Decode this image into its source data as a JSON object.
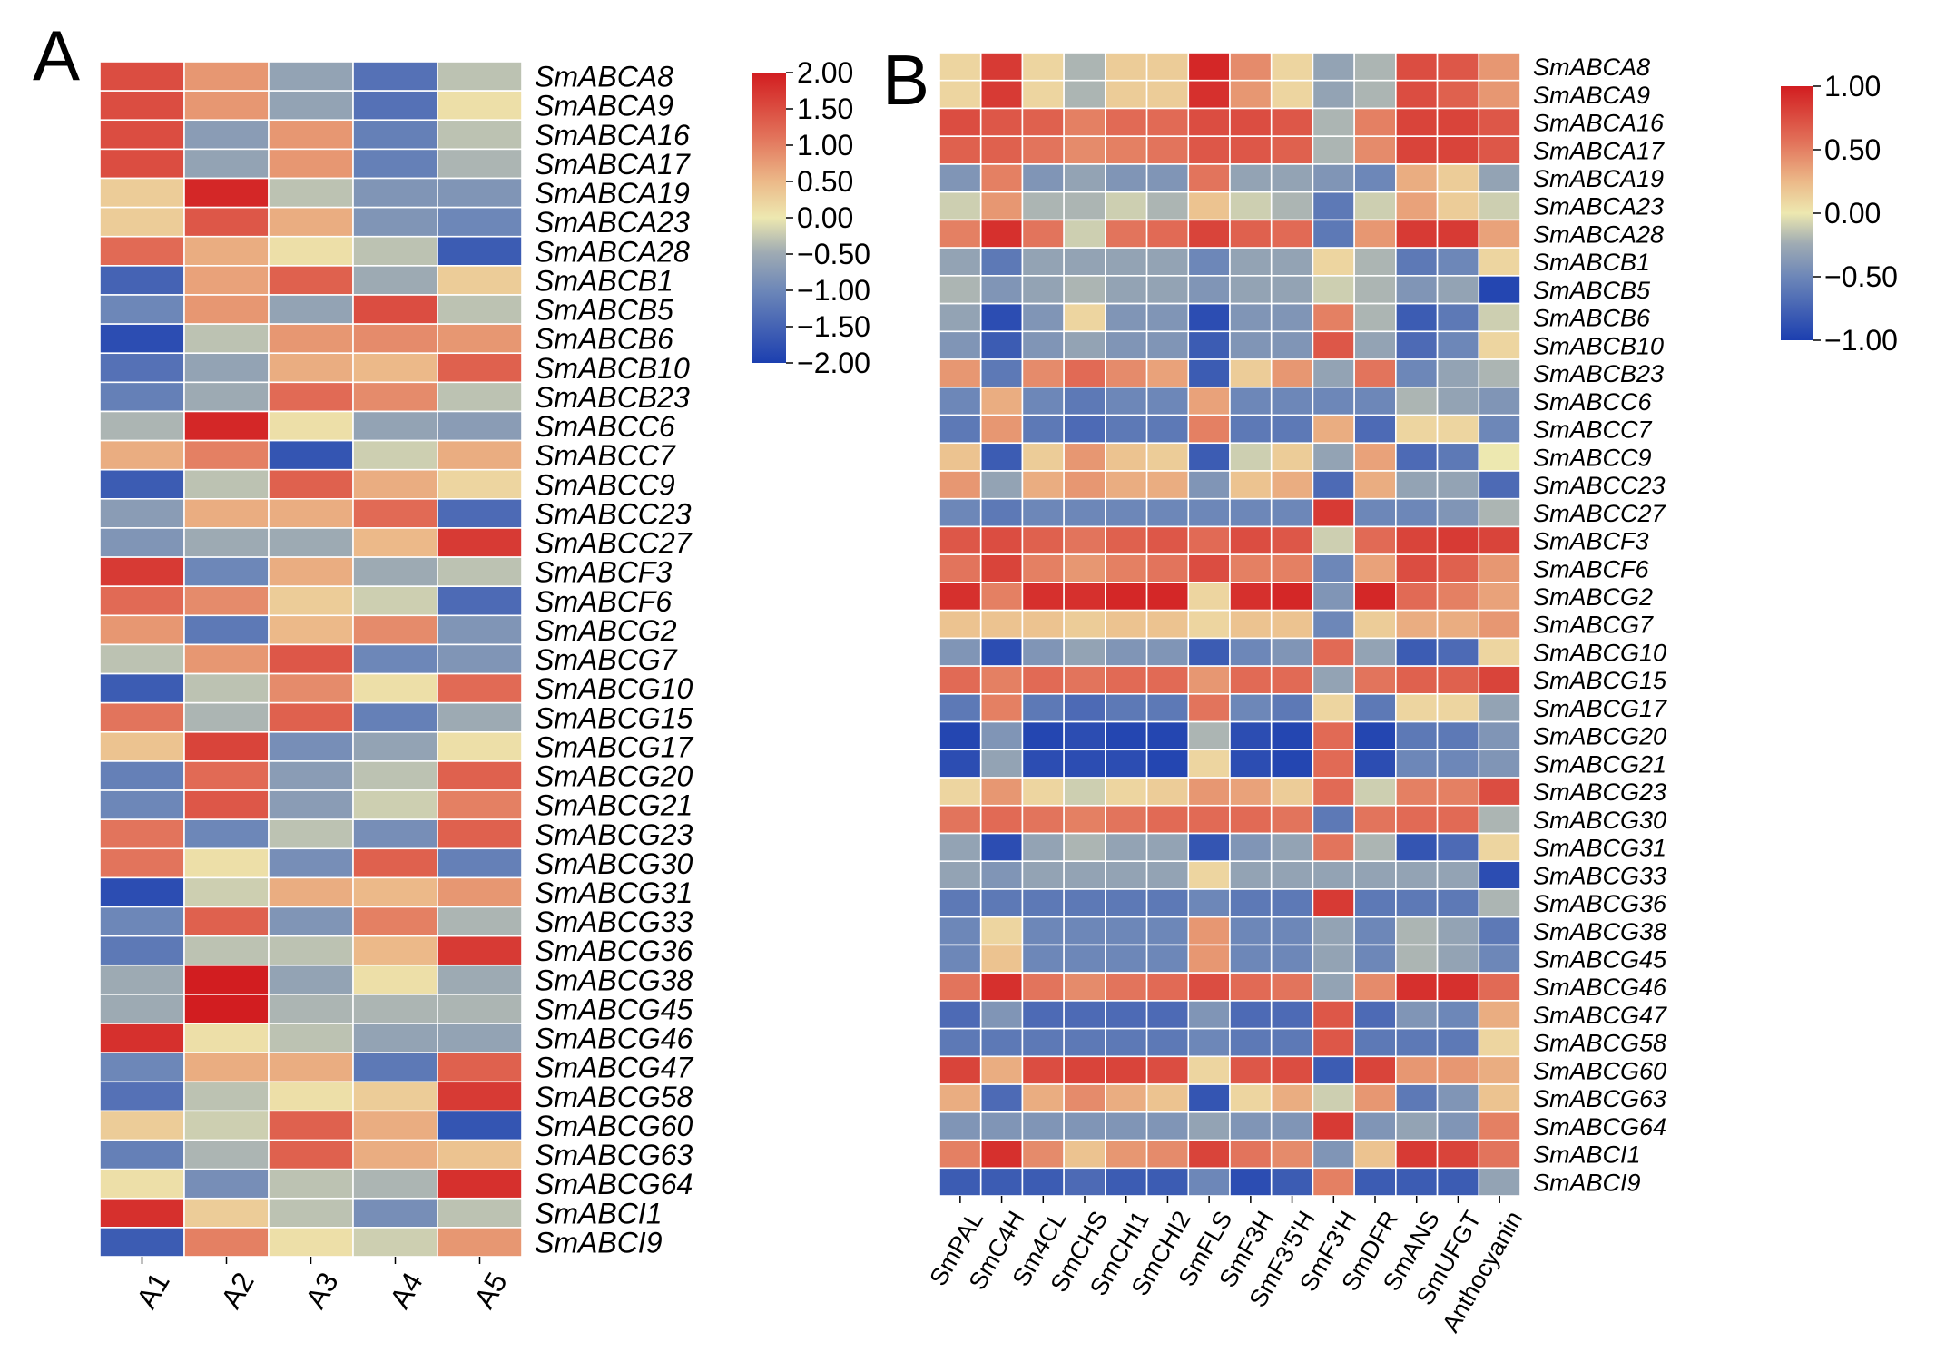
{
  "chart_data": [
    {
      "panel": "A",
      "type": "heatmap",
      "columns": [
        "A1",
        "A2",
        "A3",
        "A4",
        "A5"
      ],
      "rows": [
        "SmABCA8",
        "SmABCA9",
        "SmABCA16",
        "SmABCA17",
        "SmABCA19",
        "SmABCA23",
        "SmABCA28",
        "SmABCB1",
        "SmABCB5",
        "SmABCB6",
        "SmABCB10",
        "SmABCB23",
        "SmABCC6",
        "SmABCC7",
        "SmABCC9",
        "SmABCC23",
        "SmABCC27",
        "SmABCF3",
        "SmABCF6",
        "SmABCG2",
        "SmABCG7",
        "SmABCG10",
        "SmABCG15",
        "SmABCG17",
        "SmABCG20",
        "SmABCG21",
        "SmABCG23",
        "SmABCG30",
        "SmABCG31",
        "SmABCG33",
        "SmABCG36",
        "SmABCG38",
        "SmABCG45",
        "SmABCG46",
        "SmABCG47",
        "SmABCG58",
        "SmABCG60",
        "SmABCG63",
        "SmABCG64",
        "SmABCI1",
        "SmABCI9"
      ],
      "values": [
        [
          1.5,
          0.8,
          -0.6,
          -1.3,
          -0.3
        ],
        [
          1.5,
          0.8,
          -0.6,
          -1.3,
          0.1
        ],
        [
          1.5,
          -0.7,
          0.8,
          -1.1,
          -0.3
        ],
        [
          1.5,
          -0.6,
          0.8,
          -1.1,
          -0.4
        ],
        [
          0.3,
          1.9,
          -0.3,
          -0.8,
          -0.8
        ],
        [
          0.3,
          1.4,
          0.6,
          -0.8,
          -1.0
        ],
        [
          1.2,
          0.6,
          0.1,
          -0.3,
          -1.6
        ],
        [
          -1.5,
          0.7,
          1.3,
          -0.5,
          0.3
        ],
        [
          -1.0,
          0.8,
          -0.6,
          1.5,
          -0.3
        ],
        [
          -1.8,
          -0.3,
          0.8,
          0.9,
          0.8
        ],
        [
          -1.3,
          -0.6,
          0.6,
          0.5,
          1.3
        ],
        [
          -1.1,
          -0.5,
          1.2,
          0.9,
          -0.3
        ],
        [
          -0.4,
          1.9,
          0.1,
          -0.6,
          -0.7
        ],
        [
          0.6,
          1.0,
          -1.7,
          -0.2,
          0.6
        ],
        [
          -1.6,
          -0.3,
          1.3,
          0.6,
          0.2
        ],
        [
          -0.7,
          0.6,
          0.6,
          1.2,
          -1.4
        ],
        [
          -0.8,
          -0.5,
          -0.5,
          0.5,
          1.7
        ],
        [
          1.7,
          -1.0,
          0.6,
          -0.5,
          -0.3
        ],
        [
          1.2,
          0.9,
          0.3,
          -0.2,
          -1.4
        ],
        [
          0.8,
          -1.2,
          0.5,
          0.9,
          -0.8
        ],
        [
          -0.3,
          0.8,
          1.4,
          -1.0,
          -0.8
        ],
        [
          -1.6,
          -0.3,
          0.9,
          0.1,
          1.2
        ],
        [
          1.1,
          -0.4,
          1.3,
          -1.1,
          -0.5
        ],
        [
          0.4,
          1.6,
          -0.9,
          -0.6,
          0.1
        ],
        [
          -1.1,
          1.2,
          -0.7,
          -0.3,
          1.3
        ],
        [
          -1.0,
          1.4,
          -0.7,
          -0.2,
          1.0
        ],
        [
          1.1,
          -1.0,
          -0.3,
          -0.9,
          1.3
        ],
        [
          1.1,
          0.1,
          -0.9,
          1.3,
          -1.1
        ],
        [
          -1.8,
          -0.2,
          0.6,
          0.5,
          0.8
        ],
        [
          -1.0,
          1.3,
          -0.8,
          1.0,
          -0.4
        ],
        [
          -1.2,
          -0.3,
          -0.3,
          0.5,
          1.7
        ],
        [
          -0.5,
          2.0,
          -0.6,
          0.1,
          -0.5
        ],
        [
          -0.5,
          2.0,
          -0.4,
          -0.4,
          -0.4
        ],
        [
          1.8,
          0.1,
          -0.3,
          -0.6,
          -0.6
        ],
        [
          -1.0,
          0.6,
          0.6,
          -1.2,
          1.3
        ],
        [
          -1.3,
          -0.3,
          0.1,
          0.3,
          1.7
        ],
        [
          0.3,
          -0.2,
          1.3,
          0.6,
          -1.7
        ],
        [
          -1.1,
          -0.4,
          1.3,
          0.6,
          0.4
        ],
        [
          0.1,
          -0.9,
          -0.3,
          -0.4,
          1.8
        ],
        [
          1.8,
          0.3,
          -0.3,
          -0.9,
          -0.3
        ],
        [
          -1.6,
          1.0,
          0.1,
          -0.2,
          0.8
        ]
      ],
      "colorbar": {
        "min": -2.0,
        "max": 2.0,
        "ticks": [
          "2.00",
          "1.50",
          "1.00",
          "0.50",
          "0.00",
          "−0.50",
          "−1.00",
          "−1.50",
          "−2.00"
        ]
      }
    },
    {
      "panel": "B",
      "type": "heatmap",
      "columns": [
        "SmPAL",
        "SmC4H",
        "Sm4CL",
        "SmCHS",
        "SmCHI1",
        "SmCHI2",
        "SmFLS",
        "SmF3H",
        "SmF3'5'H",
        "SmF3'H",
        "SmDFR",
        "SmANS",
        "SmUFGT",
        "Anthocyanin"
      ],
      "rows": [
        "SmABCA8",
        "SmABCA9",
        "SmABCA16",
        "SmABCA17",
        "SmABCA19",
        "SmABCA23",
        "SmABCA28",
        "SmABCB1",
        "SmABCB5",
        "SmABCB6",
        "SmABCB10",
        "SmABCB23",
        "SmABCC6",
        "SmABCC7",
        "SmABCC9",
        "SmABCC23",
        "SmABCC27",
        "SmABCF3",
        "SmABCF6",
        "SmABCG2",
        "SmABCG7",
        "SmABCG10",
        "SmABCG15",
        "SmABCG17",
        "SmABCG20",
        "SmABCG21",
        "SmABCG23",
        "SmABCG30",
        "SmABCG31",
        "SmABCG33",
        "SmABCG36",
        "SmABCG38",
        "SmABCG45",
        "SmABCG46",
        "SmABCG47",
        "SmABCG58",
        "SmABCG60",
        "SmABCG63",
        "SmABCG64",
        "SmABCI1",
        "SmABCI9"
      ],
      "values": [
        [
          0.1,
          0.85,
          0.1,
          -0.2,
          0.15,
          0.15,
          0.95,
          0.45,
          0.1,
          -0.3,
          -0.2,
          0.75,
          0.7,
          0.4
        ],
        [
          0.1,
          0.85,
          0.1,
          -0.2,
          0.15,
          0.15,
          0.9,
          0.4,
          0.1,
          -0.3,
          -0.2,
          0.75,
          0.65,
          0.4
        ],
        [
          0.75,
          0.7,
          0.65,
          0.5,
          0.6,
          0.6,
          0.75,
          0.75,
          0.7,
          -0.2,
          0.5,
          0.8,
          0.8,
          0.7
        ],
        [
          0.65,
          0.65,
          0.55,
          0.45,
          0.5,
          0.55,
          0.7,
          0.7,
          0.65,
          -0.2,
          0.45,
          0.8,
          0.8,
          0.7
        ],
        [
          -0.4,
          0.5,
          -0.4,
          -0.3,
          -0.4,
          -0.4,
          0.55,
          -0.3,
          -0.3,
          -0.4,
          -0.5,
          0.3,
          0.15,
          -0.3
        ],
        [
          -0.1,
          0.4,
          -0.2,
          -0.2,
          -0.1,
          -0.2,
          0.2,
          -0.1,
          -0.2,
          -0.6,
          -0.1,
          0.35,
          0.15,
          -0.1
        ],
        [
          0.5,
          0.9,
          0.55,
          -0.1,
          0.55,
          0.6,
          0.8,
          0.65,
          0.6,
          -0.6,
          0.4,
          0.85,
          0.85,
          0.35
        ],
        [
          -0.3,
          -0.6,
          -0.3,
          -0.3,
          -0.3,
          -0.3,
          -0.5,
          -0.3,
          -0.3,
          0.1,
          -0.2,
          -0.6,
          -0.5,
          0.1
        ],
        [
          -0.2,
          -0.4,
          -0.3,
          -0.2,
          -0.3,
          -0.3,
          -0.4,
          -0.3,
          -0.3,
          -0.1,
          -0.2,
          -0.4,
          -0.3,
          -0.95
        ],
        [
          -0.3,
          -0.9,
          -0.4,
          0.1,
          -0.4,
          -0.4,
          -0.9,
          -0.4,
          -0.4,
          0.5,
          -0.2,
          -0.8,
          -0.6,
          -0.1
        ],
        [
          -0.4,
          -0.8,
          -0.4,
          -0.3,
          -0.4,
          -0.4,
          -0.8,
          -0.4,
          -0.4,
          0.7,
          -0.3,
          -0.7,
          -0.5,
          0.1
        ],
        [
          0.4,
          -0.6,
          0.45,
          0.6,
          0.45,
          0.35,
          -0.8,
          0.15,
          0.4,
          -0.3,
          0.55,
          -0.5,
          -0.3,
          -0.2
        ],
        [
          -0.5,
          0.3,
          -0.5,
          -0.6,
          -0.5,
          -0.5,
          0.35,
          -0.5,
          -0.5,
          -0.5,
          -0.5,
          -0.2,
          -0.3,
          -0.4
        ],
        [
          -0.6,
          0.4,
          -0.6,
          -0.7,
          -0.6,
          -0.6,
          0.5,
          -0.6,
          -0.6,
          0.3,
          -0.7,
          0.1,
          0.1,
          -0.5
        ],
        [
          0.2,
          -0.8,
          0.15,
          0.4,
          0.2,
          0.15,
          -0.8,
          -0.1,
          0.15,
          -0.3,
          0.35,
          -0.7,
          -0.6,
          0.0
        ],
        [
          0.4,
          -0.3,
          0.3,
          0.4,
          0.3,
          0.3,
          -0.4,
          0.2,
          0.3,
          -0.7,
          0.3,
          -0.3,
          -0.3,
          -0.7
        ],
        [
          -0.5,
          -0.6,
          -0.5,
          -0.5,
          -0.5,
          -0.5,
          -0.5,
          -0.5,
          -0.5,
          0.85,
          -0.5,
          -0.5,
          -0.4,
          -0.2
        ],
        [
          0.7,
          0.75,
          0.65,
          0.55,
          0.65,
          0.7,
          0.6,
          0.75,
          0.7,
          -0.1,
          0.6,
          0.8,
          0.85,
          0.8
        ],
        [
          0.55,
          0.8,
          0.5,
          0.4,
          0.5,
          0.55,
          0.75,
          0.5,
          0.5,
          -0.5,
          0.35,
          0.75,
          0.65,
          0.4
        ],
        [
          0.9,
          0.5,
          0.9,
          0.9,
          0.95,
          0.95,
          0.1,
          0.9,
          0.95,
          -0.4,
          0.95,
          0.6,
          0.5,
          0.35
        ],
        [
          0.2,
          0.2,
          0.2,
          0.15,
          0.2,
          0.2,
          0.1,
          0.2,
          0.2,
          -0.5,
          0.15,
          0.3,
          0.3,
          0.4
        ],
        [
          -0.4,
          -0.9,
          -0.4,
          -0.3,
          -0.4,
          -0.4,
          -0.8,
          -0.5,
          -0.4,
          0.6,
          -0.3,
          -0.8,
          -0.7,
          0.1
        ],
        [
          0.6,
          0.5,
          0.6,
          0.55,
          0.6,
          0.6,
          0.4,
          0.6,
          0.6,
          -0.3,
          0.55,
          0.65,
          0.65,
          0.8
        ],
        [
          -0.6,
          0.5,
          -0.6,
          -0.7,
          -0.6,
          -0.6,
          0.55,
          -0.5,
          -0.6,
          0.1,
          -0.6,
          0.1,
          0.1,
          -0.3
        ],
        [
          -0.95,
          -0.4,
          -0.95,
          -0.9,
          -0.95,
          -0.95,
          -0.2,
          -0.9,
          -0.95,
          0.6,
          -0.95,
          -0.6,
          -0.6,
          -0.4
        ],
        [
          -0.9,
          -0.3,
          -0.9,
          -0.9,
          -0.9,
          -0.95,
          0.1,
          -0.9,
          -0.95,
          0.6,
          -0.9,
          -0.5,
          -0.5,
          -0.4
        ],
        [
          0.1,
          0.4,
          0.1,
          -0.1,
          0.1,
          0.15,
          0.4,
          0.35,
          0.15,
          0.6,
          -0.1,
          0.5,
          0.5,
          0.75
        ],
        [
          0.55,
          0.6,
          0.55,
          0.5,
          0.55,
          0.6,
          0.6,
          0.6,
          0.55,
          -0.6,
          0.55,
          0.6,
          0.6,
          -0.2
        ],
        [
          -0.3,
          -0.9,
          -0.3,
          -0.2,
          -0.3,
          -0.3,
          -0.85,
          -0.4,
          -0.3,
          0.55,
          -0.2,
          -0.85,
          -0.7,
          0.1
        ],
        [
          -0.3,
          -0.4,
          -0.3,
          -0.3,
          -0.3,
          -0.3,
          0.1,
          -0.3,
          -0.3,
          -0.3,
          -0.3,
          -0.3,
          -0.3,
          -0.9
        ],
        [
          -0.6,
          -0.6,
          -0.6,
          -0.6,
          -0.6,
          -0.6,
          -0.5,
          -0.6,
          -0.6,
          0.85,
          -0.6,
          -0.6,
          -0.6,
          -0.2
        ],
        [
          -0.5,
          0.1,
          -0.5,
          -0.5,
          -0.5,
          -0.5,
          0.4,
          -0.5,
          -0.5,
          -0.3,
          -0.5,
          -0.2,
          -0.3,
          -0.6
        ],
        [
          -0.5,
          0.2,
          -0.5,
          -0.5,
          -0.5,
          -0.5,
          0.4,
          -0.5,
          -0.5,
          -0.3,
          -0.5,
          -0.2,
          -0.3,
          -0.5
        ],
        [
          0.55,
          0.9,
          0.55,
          0.45,
          0.55,
          0.6,
          0.75,
          0.6,
          0.55,
          -0.3,
          0.45,
          0.9,
          0.9,
          0.6
        ],
        [
          -0.7,
          -0.4,
          -0.7,
          -0.7,
          -0.7,
          -0.7,
          -0.4,
          -0.7,
          -0.7,
          0.7,
          -0.7,
          -0.4,
          -0.5,
          0.3
        ],
        [
          -0.6,
          -0.6,
          -0.6,
          -0.6,
          -0.6,
          -0.6,
          -0.5,
          -0.6,
          -0.6,
          0.7,
          -0.6,
          -0.6,
          -0.6,
          0.1
        ],
        [
          0.8,
          0.3,
          0.75,
          0.8,
          0.8,
          0.75,
          0.1,
          0.7,
          0.75,
          -0.8,
          0.8,
          0.4,
          0.4,
          0.3
        ],
        [
          0.3,
          -0.7,
          0.3,
          0.45,
          0.3,
          0.2,
          -0.85,
          0.1,
          0.3,
          -0.1,
          0.4,
          -0.6,
          -0.4,
          0.2
        ],
        [
          -0.4,
          -0.4,
          -0.4,
          -0.4,
          -0.4,
          -0.4,
          -0.3,
          -0.4,
          -0.4,
          0.85,
          -0.4,
          -0.3,
          -0.4,
          0.5
        ],
        [
          0.5,
          0.9,
          0.45,
          0.2,
          0.4,
          0.45,
          0.8,
          0.55,
          0.45,
          -0.4,
          0.2,
          0.85,
          0.8,
          0.55
        ],
        [
          -0.8,
          -0.8,
          -0.8,
          -0.7,
          -0.8,
          -0.8,
          -0.5,
          -0.9,
          -0.8,
          0.5,
          -0.8,
          -0.8,
          -0.8,
          -0.3
        ]
      ],
      "colorbar": {
        "min": -1.0,
        "max": 1.0,
        "ticks": [
          "1.00",
          "0.50",
          "0.00",
          "−0.50",
          "−1.00"
        ]
      }
    }
  ],
  "labels": {
    "panel_a": "A",
    "panel_b": "B"
  }
}
